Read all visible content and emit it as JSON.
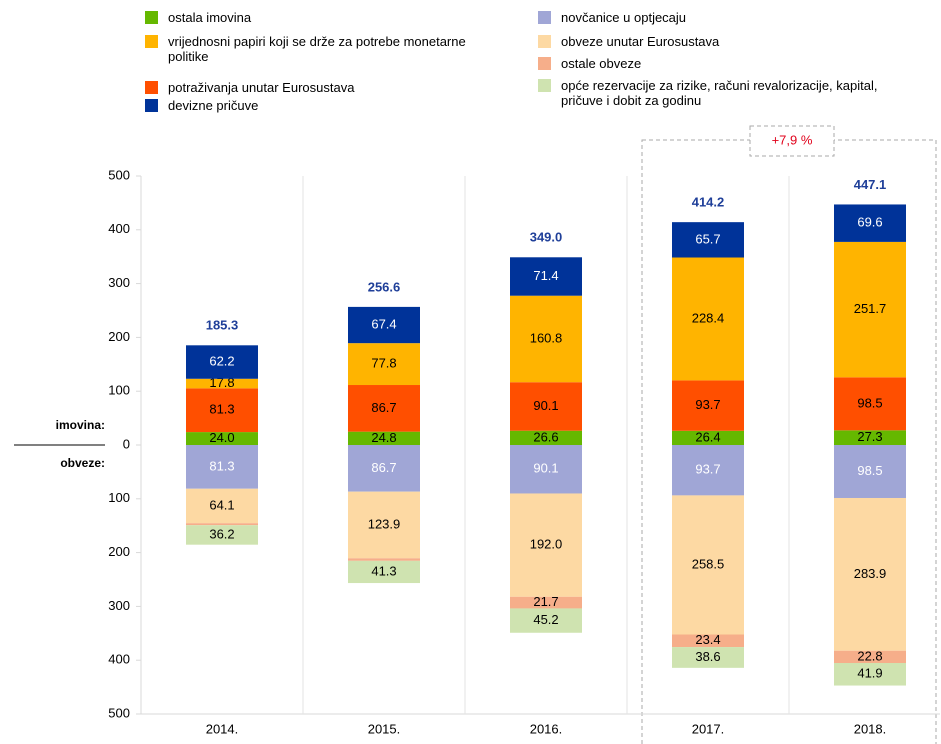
{
  "chart_data": {
    "type": "stacked_bar",
    "categories": [
      "2014.",
      "2015.",
      "2016.",
      "2017.",
      "2018."
    ],
    "series": [
      {
        "name": "ostala imovina",
        "color": "#65b800",
        "label_color": "#000000",
        "values": [
          24.0,
          24.8,
          26.6,
          26.4,
          27.3
        ],
        "value_labels": [
          "24.0",
          "24.8",
          "26.6",
          "26.4",
          "27.3"
        ]
      },
      {
        "name": "potraživanja unutar Eurosustava",
        "color": "#ff4f00",
        "label_color": "#000000",
        "values": [
          81.3,
          86.7,
          90.1,
          93.7,
          98.5
        ],
        "value_labels": [
          "81.3",
          "86.7",
          "90.1",
          "93.7",
          "98.5"
        ]
      },
      {
        "name": "vrijednosni papiri koji se drže za potrebe monetarne politike",
        "color": "#ffb400",
        "label_color": "#000000",
        "values": [
          17.8,
          77.8,
          160.8,
          228.4,
          251.7
        ],
        "value_labels": [
          "17.8",
          "77.8",
          "160.8",
          "228.4",
          "251.7"
        ]
      },
      {
        "name": "devizne pričuve",
        "color": "#003399",
        "label_color": "#ffffff",
        "values": [
          62.2,
          67.4,
          71.4,
          65.7,
          69.6
        ],
        "value_labels": [
          "62.2",
          "67.4",
          "71.4",
          "65.7",
          "69.6"
        ]
      },
      {
        "name": "novčanice u optjecaju",
        "color": "#a0a6d6",
        "label_color": "#ffffff",
        "values": [
          -81.3,
          -86.7,
          -90.1,
          -93.7,
          -98.5
        ],
        "value_labels": [
          "81.3",
          "86.7",
          "90.1",
          "93.7",
          "98.5"
        ]
      },
      {
        "name": "obveze unutar Eurosustava",
        "color": "#fdd9a3",
        "label_color": "#000000",
        "values": [
          -64.1,
          -123.9,
          -192.0,
          -258.5,
          -283.9
        ],
        "value_labels": [
          "64.1",
          "123.9",
          "192.0",
          "258.5",
          "283.9"
        ]
      },
      {
        "name": "ostale obveze",
        "color": "#f6ae8a",
        "label_color": "#000000",
        "values": [
          -3.7,
          -4.7,
          -21.7,
          -23.4,
          -22.8
        ],
        "value_labels": [
          null,
          null,
          "21.7",
          "23.4",
          "22.8"
        ]
      },
      {
        "name": "opće rezervacije za rizike, računi revalorizacije, kapital, pričuve i dobit za godinu",
        "color": "#cfe3b0",
        "label_color": "#000000",
        "values": [
          -36.2,
          -41.3,
          -45.2,
          -38.6,
          -41.9
        ],
        "value_labels": [
          "36.2",
          "41.3",
          "45.2",
          "38.6",
          "41.9"
        ]
      }
    ],
    "totals": {
      "color": "#1f3f99",
      "values": [
        185.3,
        256.6,
        349.0,
        414.2,
        447.1
      ],
      "value_labels": [
        "185.3",
        "256.6",
        "349.0",
        "414.2",
        "447.1"
      ]
    },
    "ylim": [
      -500,
      500
    ],
    "yticks": [
      {
        "value": -500,
        "label": "500"
      },
      {
        "value": -400,
        "label": "400"
      },
      {
        "value": -300,
        "label": "300"
      },
      {
        "value": -200,
        "label": "200"
      },
      {
        "value": -100,
        "label": "100"
      },
      0,
      100,
      200,
      300,
      400,
      500
    ],
    "ylabel_top": "imovina:",
    "ylabel_bottom": "obveze:",
    "annotation": "+7,9 %"
  }
}
